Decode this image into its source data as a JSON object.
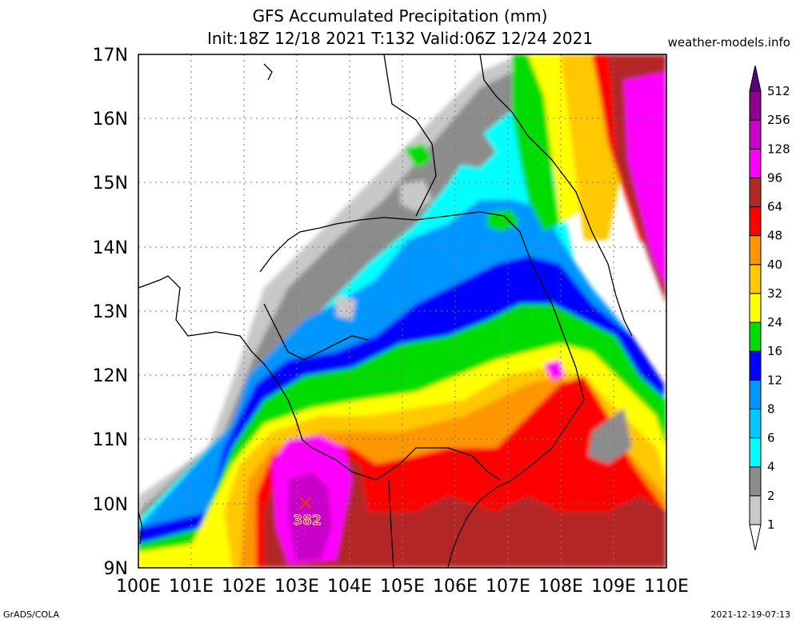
{
  "title_line1": "GFS Accumulated Precipitation (mm)",
  "title_line2": "Init:18Z 12/18 2021 T:132 Valid:06Z 12/24 2021",
  "credit": "weather-models.info",
  "footer_left": "GrADS/COLA",
  "footer_right": "2021-12-19-07:13",
  "lat_labels": [
    "17N",
    "16N",
    "15N",
    "14N",
    "13N",
    "12N",
    "11N",
    "10N",
    "9N"
  ],
  "lon_labels": [
    "100E",
    "101E",
    "102E",
    "103E",
    "104E",
    "105E",
    "106E",
    "107E",
    "108E",
    "109E",
    "110E"
  ],
  "colorbar": {
    "levels": [
      "1",
      "2",
      "4",
      "6",
      "8",
      "12",
      "16",
      "24",
      "32",
      "40",
      "48",
      "64",
      "96",
      "128",
      "256",
      "512"
    ],
    "colors": [
      "#ffffff",
      "#c8c8c8",
      "#8c8c8c",
      "#00ffff",
      "#00c8ff",
      "#0096ff",
      "#0000ff",
      "#00dc00",
      "#ffff00",
      "#ffc800",
      "#ff9600",
      "#ff0000",
      "#b42828",
      "#ff00ff",
      "#c800c8",
      "#8c008c",
      "#5a0078"
    ]
  },
  "max_marker": {
    "label": "382",
    "lon": 103.2,
    "lat": 10.05,
    "color": "#e03030"
  }
}
